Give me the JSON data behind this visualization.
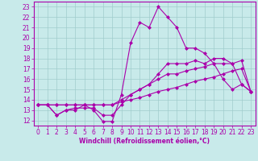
{
  "xlabel": "Windchill (Refroidissement éolien,°C)",
  "xlim": [
    -0.5,
    23.5
  ],
  "ylim": [
    11.5,
    23.5
  ],
  "xticks": [
    0,
    1,
    2,
    3,
    4,
    5,
    6,
    7,
    8,
    9,
    10,
    11,
    12,
    13,
    14,
    15,
    16,
    17,
    18,
    19,
    20,
    21,
    22,
    23
  ],
  "yticks": [
    12,
    13,
    14,
    15,
    16,
    17,
    18,
    19,
    20,
    21,
    22,
    23
  ],
  "background_color": "#c8eaea",
  "grid_color": "#a0cccc",
  "line_color": "#aa00aa",
  "marker": "D",
  "markersize": 2,
  "linewidth": 0.8,
  "tick_labelsize": 5.5,
  "xlabel_fontsize": 5.5,
  "series": [
    [
      13.5,
      13.5,
      12.5,
      13.0,
      13.0,
      13.5,
      13.0,
      11.9,
      11.9,
      14.5,
      19.5,
      21.5,
      21.0,
      23.0,
      22.0,
      21.0,
      19.0,
      19.0,
      18.5,
      17.5,
      16.0,
      15.0,
      15.5,
      14.8
    ],
    [
      13.5,
      13.5,
      12.5,
      13.0,
      13.2,
      13.2,
      13.2,
      12.5,
      12.5,
      13.5,
      14.5,
      15.0,
      15.5,
      16.5,
      17.5,
      17.5,
      17.5,
      17.8,
      17.5,
      18.0,
      18.0,
      17.5,
      15.5,
      14.8
    ],
    [
      13.5,
      13.5,
      13.5,
      13.5,
      13.5,
      13.5,
      13.5,
      13.5,
      13.5,
      14.0,
      14.5,
      15.0,
      15.5,
      16.0,
      16.5,
      16.5,
      16.8,
      17.0,
      17.2,
      17.5,
      17.5,
      17.5,
      17.8,
      14.8
    ],
    [
      13.5,
      13.5,
      13.5,
      13.5,
      13.5,
      13.5,
      13.5,
      13.5,
      13.5,
      13.8,
      14.0,
      14.2,
      14.5,
      14.8,
      15.0,
      15.2,
      15.5,
      15.8,
      16.0,
      16.2,
      16.5,
      16.8,
      17.0,
      14.8
    ]
  ]
}
